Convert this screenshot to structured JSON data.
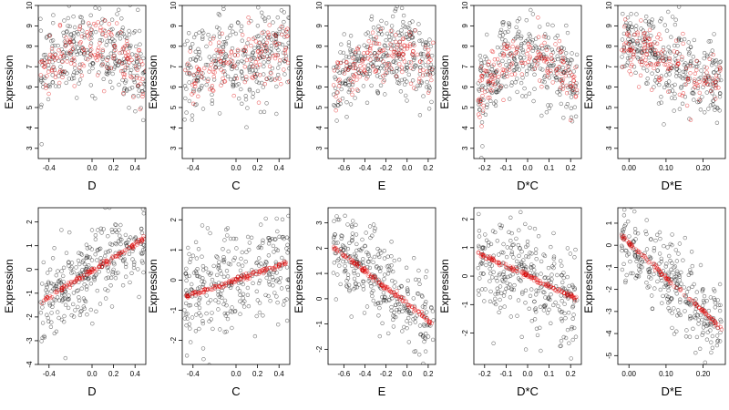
{
  "chart_data": [
    {
      "type": "scatter",
      "row": 0,
      "xlabel": "D",
      "ylabel": "Expression",
      "xlim": [
        -0.5,
        0.5
      ],
      "ylim": [
        2.5,
        10
      ],
      "xticks": [
        -0.4,
        0.0,
        0.2,
        0.4
      ],
      "xticklabels": [
        "-0.4",
        "0.0",
        "0.2",
        "0.4"
      ],
      "yticks": [
        3,
        4,
        5,
        6,
        7,
        8,
        9,
        10
      ],
      "yticklabels": [
        "3",
        "4",
        "5",
        "6",
        "7",
        "8",
        "9",
        "10"
      ],
      "cloud": {
        "kind": "hump",
        "center": 0.0,
        "peak": 8.0,
        "curv": 6.0,
        "spread": 1.0,
        "n": 300,
        "xrange": [
          -0.48,
          0.5
        ]
      },
      "fit": {
        "kind": "hump",
        "center": 0.0,
        "peak": 7.9,
        "curv": 6.0,
        "spread": 0.7,
        "n": 160,
        "xrange": [
          -0.48,
          0.5
        ]
      }
    },
    {
      "type": "scatter",
      "row": 0,
      "xlabel": "C",
      "ylabel": "Expression",
      "xlim": [
        -0.5,
        0.5
      ],
      "ylim": [
        2.5,
        10
      ],
      "xticks": [
        -0.4,
        0.0,
        0.2,
        0.4
      ],
      "xticklabels": [
        "-0.4",
        "0.0",
        "0.2",
        "0.4"
      ],
      "yticks": [
        3,
        4,
        5,
        6,
        7,
        8,
        9,
        10
      ],
      "yticklabels": [
        "3",
        "4",
        "5",
        "6",
        "7",
        "8",
        "9",
        "10"
      ],
      "cloud": {
        "kind": "linear",
        "a": 7.3,
        "b": 1.5,
        "spread": 1.2,
        "n": 300,
        "xrange": [
          -0.48,
          0.5
        ]
      },
      "fit": {
        "kind": "linear",
        "a": 7.2,
        "b": 1.5,
        "spread": 0.8,
        "n": 140,
        "xrange": [
          -0.48,
          0.5
        ]
      }
    },
    {
      "type": "scatter",
      "row": 0,
      "xlabel": "E",
      "ylabel": "Expression",
      "xlim": [
        -0.75,
        0.27
      ],
      "ylim": [
        2.5,
        10
      ],
      "xticks": [
        -0.6,
        -0.4,
        -0.2,
        0.0,
        0.2
      ],
      "xticklabels": [
        "-0.6",
        "-0.4",
        "-0.2",
        "0.0",
        "0.2"
      ],
      "yticks": [
        3,
        4,
        5,
        6,
        7,
        8,
        9,
        10
      ],
      "yticklabels": [
        "3",
        "4",
        "5",
        "6",
        "7",
        "8",
        "9",
        "10"
      ],
      "cloud": {
        "kind": "rise",
        "a": 7.6,
        "b": 3.2,
        "spread": 1.0,
        "n": 300,
        "xrange": [
          -0.7,
          0.25
        ]
      },
      "fit": {
        "kind": "rise",
        "a": 7.7,
        "b": 3.2,
        "spread": 0.6,
        "n": 150,
        "xrange": [
          -0.7,
          0.25
        ]
      }
    },
    {
      "type": "scatter",
      "row": 0,
      "xlabel": "D*C",
      "ylabel": "Expression",
      "xlim": [
        -0.25,
        0.25
      ],
      "ylim": [
        2.5,
        10
      ],
      "xticks": [
        -0.2,
        -0.1,
        0.0,
        0.1,
        0.2
      ],
      "xticklabels": [
        "-0.2",
        "-0.1",
        "0.0",
        "0.1",
        "0.2"
      ],
      "yticks": [
        3,
        4,
        5,
        6,
        7,
        8,
        9,
        10
      ],
      "yticklabels": [
        "3",
        "4",
        "5",
        "6",
        "7",
        "8",
        "9",
        "10"
      ],
      "cloud": {
        "kind": "hump",
        "center": 0.0,
        "peak": 7.7,
        "curv": 40.0,
        "spread": 1.0,
        "n": 300,
        "xrange": [
          -0.23,
          0.23
        ]
      },
      "fit": {
        "kind": "hump",
        "center": 0.0,
        "peak": 7.6,
        "curv": 40.0,
        "spread": 0.7,
        "n": 160,
        "xrange": [
          -0.23,
          0.23
        ]
      }
    },
    {
      "type": "scatter",
      "row": 0,
      "xlabel": "D*E",
      "ylabel": "Expression",
      "xlim": [
        -0.03,
        0.26
      ],
      "ylim": [
        2.5,
        10
      ],
      "xticks": [
        0.0,
        0.1,
        0.2
      ],
      "xticklabels": [
        "0.00",
        "0.10",
        "0.20"
      ],
      "yticks": [
        3,
        4,
        5,
        6,
        7,
        8,
        9,
        10
      ],
      "yticklabels": [
        "3",
        "4",
        "5",
        "6",
        "7",
        "8",
        "9",
        "10"
      ],
      "cloud": {
        "kind": "decay",
        "a": 8.2,
        "b": -12.0,
        "spread": 1.0,
        "n": 300,
        "xrange": [
          -0.02,
          0.25
        ]
      },
      "fit": {
        "kind": "decay",
        "a": 8.1,
        "b": -10.0,
        "spread": 0.7,
        "n": 150,
        "xrange": [
          -0.02,
          0.25
        ]
      }
    },
    {
      "type": "scatter",
      "row": 1,
      "xlabel": "D",
      "ylabel": "Expression",
      "xlim": [
        -0.5,
        0.5
      ],
      "ylim": [
        -4,
        2.6
      ],
      "xticks": [
        -0.4,
        0.0,
        0.2,
        0.4
      ],
      "xticklabels": [
        "-0.4",
        "0.0",
        "0.2",
        "0.4"
      ],
      "yticks": [
        -4,
        -3,
        -2,
        -1,
        0,
        1,
        2
      ],
      "yticklabels": [
        "-4",
        "-3",
        "-2",
        "-1",
        "0",
        "1",
        "2"
      ],
      "cloud": {
        "kind": "linear",
        "a": 0.0,
        "b": 2.8,
        "spread": 0.9,
        "n": 300,
        "xrange": [
          -0.48,
          0.5
        ]
      },
      "fit": {
        "kind": "linear",
        "a": -0.05,
        "b": 2.8,
        "spread": 0.05,
        "n": 130,
        "xrange": [
          -0.47,
          0.48
        ]
      }
    },
    {
      "type": "scatter",
      "row": 1,
      "xlabel": "C",
      "ylabel": "Expression",
      "xlim": [
        -0.5,
        0.5
      ],
      "ylim": [
        -2.8,
        2.4
      ],
      "xticks": [
        -0.4,
        0.0,
        0.2,
        0.4
      ],
      "xticklabels": [
        "-0.4",
        "0.0",
        "0.2",
        "0.4"
      ],
      "yticks": [
        -2,
        -1,
        0,
        1,
        2
      ],
      "yticklabels": [
        "-2",
        "-1",
        "0",
        "1",
        "2"
      ],
      "cloud": {
        "kind": "linear",
        "a": 0.0,
        "b": 1.2,
        "spread": 0.9,
        "n": 300,
        "xrange": [
          -0.48,
          0.5
        ]
      },
      "fit": {
        "kind": "linear",
        "a": 0.0,
        "b": 1.2,
        "spread": 0.04,
        "n": 130,
        "xrange": [
          -0.47,
          0.48
        ]
      }
    },
    {
      "type": "scatter",
      "row": 1,
      "xlabel": "E",
      "ylabel": "Expression",
      "xlim": [
        -0.75,
        0.27
      ],
      "ylim": [
        -2.6,
        3.6
      ],
      "xticks": [
        -0.6,
        -0.4,
        -0.2,
        0.0,
        0.2
      ],
      "xticklabels": [
        "-0.6",
        "-0.4",
        "-0.2",
        "0.0",
        "0.2"
      ],
      "yticks": [
        -2,
        -1,
        0,
        1,
        2,
        3
      ],
      "yticklabels": [
        "-2",
        "-1",
        "0",
        "1",
        "2",
        "3"
      ],
      "cloud": {
        "kind": "linear",
        "a": -0.2,
        "b": -3.3,
        "spread": 0.9,
        "n": 300,
        "xrange": [
          -0.7,
          0.25
        ]
      },
      "fit": {
        "kind": "linear",
        "a": -0.2,
        "b": -3.2,
        "spread": 0.05,
        "n": 130,
        "xrange": [
          -0.7,
          0.24
        ]
      }
    },
    {
      "type": "scatter",
      "row": 1,
      "xlabel": "D*C",
      "ylabel": "Expression",
      "xlim": [
        -0.25,
        0.25
      ],
      "ylim": [
        -3.1,
        2.4
      ],
      "xticks": [
        -0.2,
        -0.1,
        0.0,
        0.1,
        0.2
      ],
      "xticklabels": [
        "-0.2",
        "-0.1",
        "0.0",
        "0.1",
        "0.2"
      ],
      "yticks": [
        -2,
        -1,
        0,
        1,
        2
      ],
      "yticklabels": [
        "-2",
        "-1",
        "0",
        "1",
        "2"
      ],
      "cloud": {
        "kind": "linear",
        "a": -0.1,
        "b": -3.5,
        "spread": 0.9,
        "n": 300,
        "xrange": [
          -0.23,
          0.23
        ]
      },
      "fit": {
        "kind": "linear",
        "a": 0.0,
        "b": -3.5,
        "spread": 0.05,
        "n": 130,
        "xrange": [
          -0.23,
          0.23
        ]
      }
    },
    {
      "type": "scatter",
      "row": 1,
      "xlabel": "D*E",
      "ylabel": "Expression",
      "xlim": [
        -0.03,
        0.26
      ],
      "ylim": [
        -5.4,
        1.7
      ],
      "xticks": [
        0.0,
        0.1,
        0.2
      ],
      "xticklabels": [
        "0.00",
        "0.10",
        "0.20"
      ],
      "yticks": [
        -5,
        -4,
        -3,
        -2,
        -1,
        0,
        1
      ],
      "yticklabels": [
        "-5",
        "-4",
        "-3",
        "-2",
        "-1",
        "0",
        "1"
      ],
      "cloud": {
        "kind": "linear",
        "a": 0.0,
        "b": -15.5,
        "spread": 0.9,
        "n": 300,
        "xrange": [
          -0.02,
          0.25
        ]
      },
      "fit": {
        "kind": "linear",
        "a": 0.1,
        "b": -15.5,
        "spread": 0.05,
        "n": 110,
        "xrange": [
          -0.02,
          0.25
        ]
      }
    }
  ],
  "colors": {
    "cloud": "#000000",
    "fit": "#e00000",
    "axis": "#000000",
    "background": "#ffffff"
  }
}
